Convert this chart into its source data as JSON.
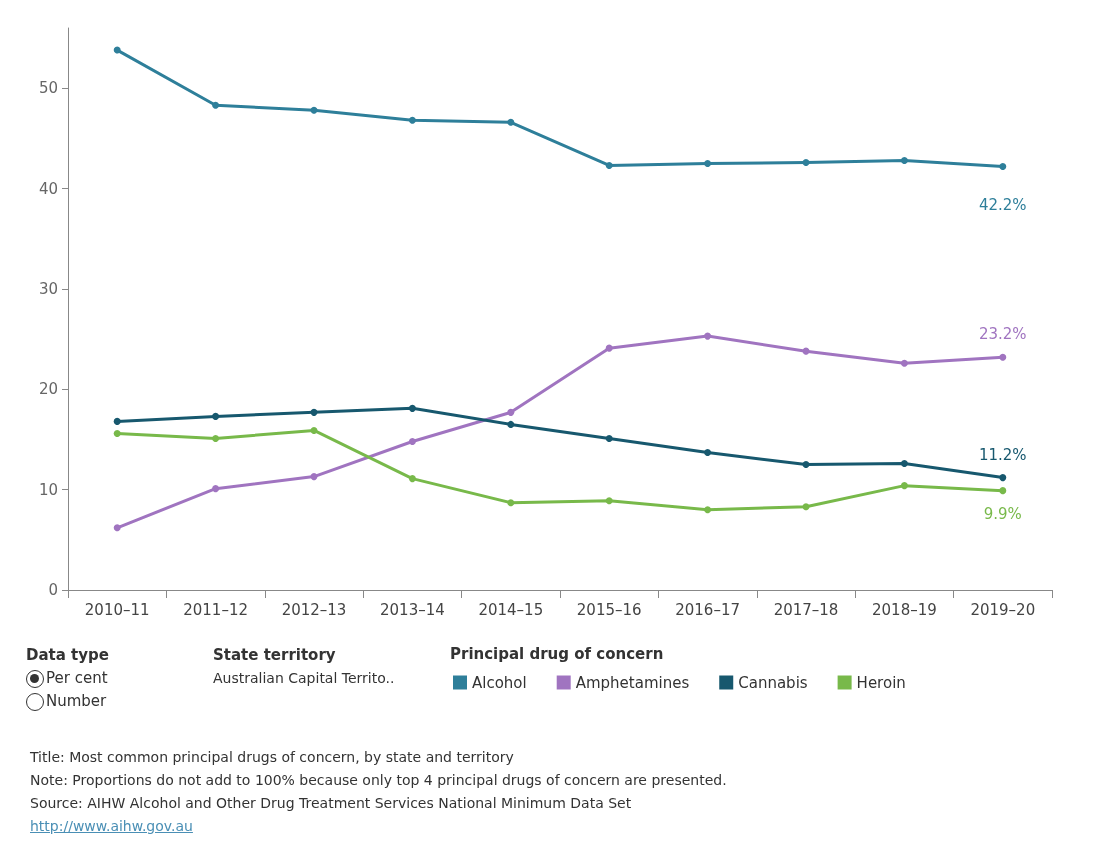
{
  "chart_data": {
    "type": "line",
    "legend_title": "Principal drug of concern",
    "categories": [
      "2010–11",
      "2011–12",
      "2012–13",
      "2013–14",
      "2014–15",
      "2015–16",
      "2016–17",
      "2017–18",
      "2018–19",
      "2019–20"
    ],
    "series": [
      {
        "name": "Alcohol",
        "color": "#2e7f9a",
        "values": [
          53.8,
          48.3,
          47.8,
          46.8,
          46.6,
          42.3,
          42.5,
          42.6,
          42.8,
          42.2
        ],
        "value_labels": [
          null,
          null,
          null,
          null,
          null,
          null,
          null,
          null,
          null,
          "42.2%"
        ]
      },
      {
        "name": "Amphetamines",
        "color": "#a074c0",
        "values": [
          6.2,
          10.1,
          11.3,
          14.8,
          17.7,
          24.1,
          25.3,
          23.8,
          22.6,
          23.2
        ],
        "value_labels": [
          null,
          null,
          null,
          null,
          null,
          null,
          null,
          null,
          null,
          "23.2%"
        ]
      },
      {
        "name": "Cannabis",
        "color": "#17586e",
        "values": [
          16.8,
          17.3,
          17.7,
          18.1,
          16.5,
          15.1,
          13.7,
          12.5,
          12.6,
          11.2
        ],
        "value_labels": [
          null,
          null,
          null,
          null,
          null,
          null,
          null,
          null,
          null,
          "11.2%"
        ]
      },
      {
        "name": "Heroin",
        "color": "#78b94a",
        "values": [
          15.6,
          15.1,
          15.9,
          11.1,
          8.7,
          8.9,
          8.0,
          8.3,
          10.4,
          9.9
        ],
        "value_labels": [
          null,
          null,
          null,
          null,
          null,
          null,
          null,
          null,
          null,
          "9.9%"
        ]
      }
    ],
    "ylim": [
      0,
      56
    ],
    "yticks": [
      0,
      10,
      20,
      30,
      40,
      50
    ],
    "grid": false,
    "legend": "bottom",
    "marker": "circle",
    "line_style": "solid",
    "annotations": [
      "Data type",
      "Per cent",
      "Number",
      "State territory",
      "Australian Capital Territo..",
      "Title: Most common principal drugs of concern, by state and territory",
      "Note: Proportions do not add to 100% because only top 4 principal drugs of concern are presented.",
      "Source: AIHW Alcohol and Other Drug Treatment Services National Minimum Data Set",
      "http://www.aihw.gov.au"
    ]
  }
}
